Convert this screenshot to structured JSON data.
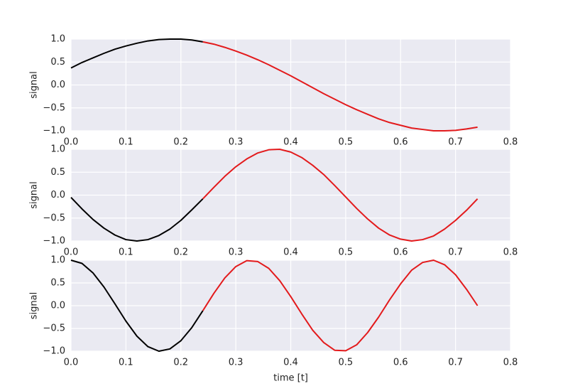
{
  "chart_data": [
    {
      "type": "line",
      "ylabel": "signal",
      "xlim": [
        0,
        0.8
      ],
      "ylim": [
        -1,
        1
      ],
      "grid": true,
      "xticks": [
        {
          "value": 0,
          "label": "0.0"
        },
        0.1,
        0.2,
        0.3,
        0.4,
        0.5,
        0.6,
        0.7,
        0.8
      ],
      "yticks": [
        {
          "value": -1,
          "label": "−1.0"
        },
        {
          "value": -0.5,
          "label": "−0.5"
        },
        {
          "value": 0,
          "label": "0.0"
        },
        0.5,
        {
          "value": 1,
          "label": "1.0"
        }
      ],
      "series": [
        {
          "color": "#000000",
          "x": [
            0,
            0.02,
            0.04,
            0.06,
            0.08,
            0.1,
            0.12,
            0.14,
            0.16,
            0.18,
            0.2,
            0.22,
            0.24
          ],
          "values": [
            0.37,
            0.49,
            0.59,
            0.69,
            0.78,
            0.85,
            0.91,
            0.96,
            0.99,
            1.0,
            1.0,
            0.98,
            0.94
          ]
        },
        {
          "color": "#e31a1c",
          "x": [
            0.24,
            0.26,
            0.28,
            0.3,
            0.32,
            0.34,
            0.36,
            0.38,
            0.4,
            0.42,
            0.44,
            0.46,
            0.48,
            0.5,
            0.52,
            0.54,
            0.56,
            0.58,
            0.6,
            0.62,
            0.64,
            0.66,
            0.68,
            0.7,
            0.72,
            0.74
          ],
          "values": [
            0.94,
            0.89,
            0.82,
            0.74,
            0.65,
            0.55,
            0.44,
            0.32,
            0.2,
            0.07,
            -0.06,
            -0.19,
            -0.31,
            -0.43,
            -0.54,
            -0.64,
            -0.74,
            -0.82,
            -0.88,
            -0.94,
            -0.97,
            -1.0,
            -1.0,
            -0.99,
            -0.96,
            -0.92
          ]
        }
      ]
    },
    {
      "type": "line",
      "ylabel": "signal",
      "xlim": [
        0,
        0.8
      ],
      "ylim": [
        -1,
        1
      ],
      "grid": true,
      "xticks": [
        {
          "value": 0,
          "label": "0.0"
        },
        0.1,
        0.2,
        0.3,
        0.4,
        0.5,
        0.6,
        0.7,
        0.8
      ],
      "yticks": [
        {
          "value": -1,
          "label": "−1.0"
        },
        {
          "value": -0.5,
          "label": "−0.5"
        },
        {
          "value": 0,
          "label": "0.0"
        },
        0.5,
        {
          "value": 1,
          "label": "1.0"
        }
      ],
      "series": [
        {
          "color": "#000000",
          "x": [
            0,
            0.02,
            0.04,
            0.06,
            0.08,
            0.1,
            0.12,
            0.14,
            0.16,
            0.18,
            0.2,
            0.22,
            0.24
          ],
          "values": [
            -0.05,
            -0.3,
            -0.53,
            -0.72,
            -0.87,
            -0.97,
            -1.0,
            -0.97,
            -0.88,
            -0.74,
            -0.55,
            -0.32,
            -0.08
          ]
        },
        {
          "color": "#e31a1c",
          "x": [
            0.24,
            0.26,
            0.28,
            0.3,
            0.32,
            0.34,
            0.36,
            0.38,
            0.4,
            0.42,
            0.44,
            0.46,
            0.48,
            0.5,
            0.52,
            0.54,
            0.56,
            0.58,
            0.6,
            0.62,
            0.64,
            0.66,
            0.68,
            0.7,
            0.72,
            0.74
          ],
          "values": [
            -0.08,
            0.17,
            0.41,
            0.62,
            0.79,
            0.92,
            0.99,
            1.0,
            0.94,
            0.82,
            0.65,
            0.45,
            0.21,
            -0.04,
            -0.29,
            -0.52,
            -0.72,
            -0.87,
            -0.96,
            -1.0,
            -0.97,
            -0.89,
            -0.74,
            -0.55,
            -0.33,
            -0.08
          ]
        }
      ]
    },
    {
      "type": "line",
      "ylabel": "signal",
      "xlabel": "time [t]",
      "xlim": [
        0,
        0.8
      ],
      "ylim": [
        -1,
        1
      ],
      "grid": true,
      "xticks": [
        {
          "value": 0,
          "label": "0.0"
        },
        0.1,
        0.2,
        0.3,
        0.4,
        0.5,
        0.6,
        0.7,
        0.8
      ],
      "yticks": [
        {
          "value": -1,
          "label": "−1.0"
        },
        {
          "value": -0.5,
          "label": "−0.5"
        },
        {
          "value": 0,
          "label": "0.0"
        },
        0.5,
        {
          "value": 1,
          "label": "1.0"
        }
      ],
      "series": [
        {
          "color": "#000000",
          "x": [
            0,
            0.02,
            0.04,
            0.06,
            0.08,
            0.1,
            0.12,
            0.14,
            0.16,
            0.18,
            0.2,
            0.22,
            0.24
          ],
          "values": [
            1,
            0.93,
            0.72,
            0.41,
            0.04,
            -0.34,
            -0.67,
            -0.9,
            -1.0,
            -0.95,
            -0.77,
            -0.48,
            -0.11
          ]
        },
        {
          "color": "#e31a1c",
          "x": [
            0.24,
            0.26,
            0.28,
            0.3,
            0.32,
            0.34,
            0.36,
            0.38,
            0.4,
            0.42,
            0.44,
            0.46,
            0.48,
            0.5,
            0.52,
            0.54,
            0.56,
            0.58,
            0.6,
            0.62,
            0.64,
            0.66,
            0.68,
            0.7,
            0.72,
            0.74
          ],
          "values": [
            -0.11,
            0.27,
            0.61,
            0.86,
            0.99,
            0.97,
            0.82,
            0.55,
            0.2,
            -0.18,
            -0.54,
            -0.81,
            -0.98,
            -0.99,
            -0.86,
            -0.59,
            -0.25,
            0.13,
            0.48,
            0.78,
            0.95,
            1.0,
            0.9,
            0.68,
            0.36,
            0
          ]
        }
      ]
    }
  ]
}
